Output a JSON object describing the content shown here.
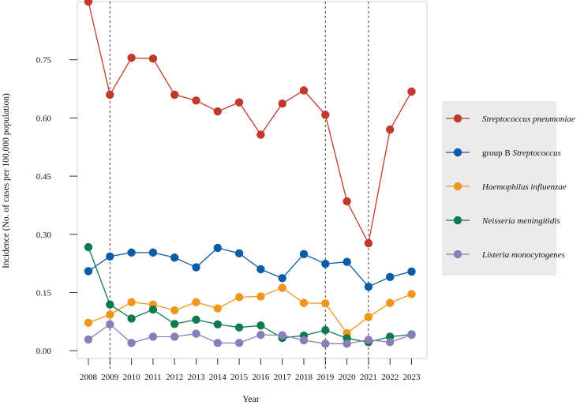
{
  "chart_data": {
    "type": "line",
    "title": "",
    "xlabel": "Year",
    "ylabel": "Incidence (No. of cases per 100,000 population)",
    "x": [
      "2008",
      "2009",
      "2010",
      "2011",
      "2012",
      "2013",
      "2014",
      "2015",
      "2016",
      "2017",
      "2018",
      "2019",
      "2020",
      "2021",
      "2022",
      "2023"
    ],
    "ylim": [
      -0.02,
      0.9
    ],
    "yticks": [
      0.0,
      0.15,
      0.3,
      0.45,
      0.6,
      0.75
    ],
    "ytick_labels": [
      "0.00",
      "0.15",
      "0.30",
      "0.45",
      "0.60",
      "0.75"
    ],
    "vlines": [
      "2009",
      "2019",
      "2021"
    ],
    "grid": false,
    "legend_position": "right",
    "series": [
      {
        "name": "Streptococcus pneumoniae",
        "legend_prefix": "",
        "legend_italic": "Streptococcus pneumoniae",
        "color": "#C0392B",
        "values": [
          0.9,
          0.66,
          0.755,
          0.753,
          0.66,
          0.645,
          0.617,
          0.64,
          0.557,
          0.637,
          0.671,
          0.608,
          0.385,
          0.277,
          0.57,
          0.668
        ]
      },
      {
        "name": "group B Streptococcus",
        "legend_prefix": "group B ",
        "legend_italic": "Streptococcus",
        "color": "#0B5BA6",
        "values": [
          0.205,
          0.243,
          0.253,
          0.253,
          0.24,
          0.215,
          0.265,
          0.251,
          0.21,
          0.187,
          0.249,
          0.224,
          0.229,
          0.165,
          0.19,
          0.204
        ]
      },
      {
        "name": "Haemophilus influenzae",
        "legend_prefix": "",
        "legend_italic": "Haemophilus influenzae",
        "color": "#F0961D",
        "values": [
          0.072,
          0.093,
          0.125,
          0.119,
          0.104,
          0.125,
          0.109,
          0.138,
          0.14,
          0.162,
          0.123,
          0.122,
          0.045,
          0.087,
          0.123,
          0.146
        ]
      },
      {
        "name": "Neisseria meningitidis",
        "legend_prefix": "",
        "legend_italic": "Neisseria meningitidis",
        "color": "#0F7A4E",
        "values": [
          0.267,
          0.119,
          0.083,
          0.106,
          0.069,
          0.08,
          0.068,
          0.06,
          0.065,
          0.033,
          0.039,
          0.053,
          0.032,
          0.022,
          0.036,
          0.042
        ]
      },
      {
        "name": "Listeria monocytogenes",
        "legend_prefix": "",
        "legend_italic": "Listeria monocytogenes",
        "color": "#8B7DB8",
        "values": [
          0.029,
          0.068,
          0.02,
          0.036,
          0.036,
          0.044,
          0.02,
          0.02,
          0.041,
          0.04,
          0.027,
          0.018,
          0.018,
          0.028,
          0.022,
          0.041
        ]
      }
    ]
  }
}
